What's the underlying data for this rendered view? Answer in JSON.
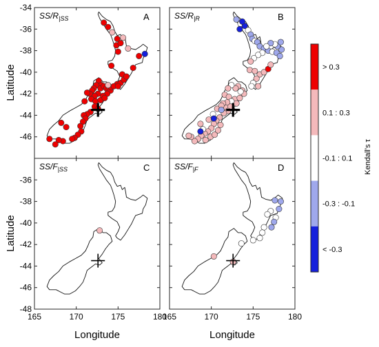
{
  "colors": {
    "strong_pos": "#ee0000",
    "weak_pos": "#f4b9bb",
    "neutral": "#ffffff",
    "weak_neg": "#9fa8ec",
    "strong_neg": "#1520dc"
  },
  "chart_data": {
    "type": "scatter",
    "xlabel": "Longitude",
    "ylabel": "Latitude",
    "xlim": [
      165,
      180
    ],
    "ylim": [
      -48,
      -34
    ],
    "xticks": [
      165,
      170,
      175,
      180
    ],
    "yticks_top": [
      -34,
      -36,
      -38,
      -40,
      -42,
      -44,
      -46
    ],
    "yticks_bottom": [
      -36,
      -38,
      -40,
      -42,
      -44,
      -46,
      -48
    ],
    "grid": false,
    "colorbar": {
      "title": "Kendall's τ",
      "classes": [
        {
          "label": "> 0.3",
          "color": "#ee0000"
        },
        {
          "label": "0.1 : 0.3",
          "color": "#f4b9bb"
        },
        {
          "label": "-0.1 : 0.1",
          "color": "#ffffff"
        },
        {
          "label": "-0.3 : -0.1",
          "color": "#9fa8ec"
        },
        {
          "label": "< -0.3",
          "color": "#1520dc"
        }
      ]
    },
    "marker": {
      "lon": 172.6,
      "lat": -43.5
    },
    "panels": [
      {
        "letter": "A",
        "title_main": "SS/R",
        "title_sub": "|SS",
        "marker_bold": true,
        "points": [
          [
            173.3,
            -35.4,
            4
          ],
          [
            173.8,
            -35.8,
            4
          ],
          [
            174.3,
            -36.3,
            3
          ],
          [
            174.9,
            -36.9,
            4
          ],
          [
            174.8,
            -37.5,
            4
          ],
          [
            175.3,
            -37.3,
            4
          ],
          [
            175.6,
            -36.8,
            3
          ],
          [
            175.0,
            -38.1,
            4
          ],
          [
            176.2,
            -37.8,
            3
          ],
          [
            177.5,
            -38.5,
            4
          ],
          [
            178.2,
            -38.3,
            0
          ],
          [
            176.8,
            -39.6,
            4
          ],
          [
            174.2,
            -39.4,
            4
          ],
          [
            175.5,
            -40.2,
            4
          ],
          [
            174.9,
            -41.1,
            4
          ],
          [
            175.3,
            -41.0,
            4
          ],
          [
            175.7,
            -40.7,
            4
          ],
          [
            176.0,
            -40.4,
            4
          ],
          [
            172.7,
            -40.8,
            4
          ],
          [
            173.0,
            -41.2,
            4
          ],
          [
            172.4,
            -41.2,
            4
          ],
          [
            172.1,
            -41.5,
            4
          ],
          [
            171.9,
            -41.7,
            4
          ],
          [
            172.9,
            -41.5,
            4
          ],
          [
            173.3,
            -41.3,
            4
          ],
          [
            173.6,
            -41.5,
            4
          ],
          [
            173.9,
            -41.6,
            4
          ],
          [
            174.1,
            -41.7,
            4
          ],
          [
            173.7,
            -42.0,
            4
          ],
          [
            173.2,
            -42.2,
            4
          ],
          [
            172.6,
            -42.0,
            4
          ],
          [
            172.2,
            -42.2,
            4
          ],
          [
            171.6,
            -42.0,
            4
          ],
          [
            171.3,
            -41.9,
            4
          ],
          [
            171.8,
            -42.5,
            4
          ],
          [
            171.0,
            -42.7,
            4
          ],
          [
            172.3,
            -42.7,
            4
          ],
          [
            172.9,
            -42.6,
            4
          ],
          [
            173.4,
            -42.4,
            4
          ],
          [
            174.2,
            -41.4,
            4
          ],
          [
            174.5,
            -41.3,
            4
          ],
          [
            175.0,
            -41.3,
            4
          ],
          [
            173.8,
            -41.2,
            3
          ],
          [
            172.2,
            -43.2,
            4
          ],
          [
            172.6,
            -43.4,
            4
          ],
          [
            171.7,
            -43.7,
            4
          ],
          [
            171.3,
            -43.9,
            4
          ],
          [
            170.9,
            -44.0,
            4
          ],
          [
            171.1,
            -44.3,
            4
          ],
          [
            170.8,
            -44.6,
            4
          ],
          [
            170.5,
            -45.0,
            4
          ],
          [
            170.6,
            -45.5,
            4
          ],
          [
            170.2,
            -45.8,
            4
          ],
          [
            169.8,
            -46.1,
            4
          ],
          [
            169.5,
            -46.2,
            4
          ],
          [
            168.4,
            -46.4,
            4
          ],
          [
            167.9,
            -46.3,
            4
          ],
          [
            168.2,
            -44.7,
            4
          ],
          [
            168.8,
            -45.1,
            4
          ],
          [
            166.8,
            -46.2,
            4
          ],
          [
            167.5,
            -46.7,
            4
          ]
        ]
      },
      {
        "letter": "B",
        "title_main": "SS/R",
        "title_sub": "|R",
        "marker_bold": true,
        "points": [
          [
            173.0,
            -35.1,
            1
          ],
          [
            173.5,
            -35.5,
            2
          ],
          [
            174.0,
            -35.7,
            0
          ],
          [
            174.4,
            -36.1,
            2
          ],
          [
            174.7,
            -36.5,
            1
          ],
          [
            174.9,
            -36.9,
            1
          ],
          [
            175.2,
            -37.1,
            2
          ],
          [
            175.5,
            -37.2,
            1
          ],
          [
            175.8,
            -37.6,
            1
          ],
          [
            176.3,
            -37.8,
            1
          ],
          [
            176.8,
            -38.0,
            1
          ],
          [
            177.3,
            -38.1,
            2
          ],
          [
            177.8,
            -38.2,
            1
          ],
          [
            178.2,
            -38.5,
            1
          ],
          [
            178.4,
            -37.9,
            1
          ],
          [
            177.9,
            -37.6,
            1
          ],
          [
            178.3,
            -37.2,
            1
          ],
          [
            177.6,
            -37.4,
            2
          ],
          [
            177.1,
            -37.3,
            1
          ],
          [
            176.6,
            -37.6,
            2
          ],
          [
            176.1,
            -38.2,
            2
          ],
          [
            175.6,
            -38.4,
            2
          ],
          [
            175.1,
            -38.7,
            2
          ],
          [
            174.7,
            -39.0,
            3
          ],
          [
            174.6,
            -39.8,
            3
          ],
          [
            175.2,
            -39.9,
            3
          ],
          [
            175.8,
            -40.2,
            3
          ],
          [
            176.3,
            -40.0,
            3
          ],
          [
            176.8,
            -39.7,
            4
          ],
          [
            177.1,
            -39.3,
            3
          ],
          [
            175.4,
            -40.6,
            3
          ],
          [
            175.0,
            -41.0,
            2
          ],
          [
            175.6,
            -41.3,
            3
          ],
          [
            174.8,
            -41.3,
            2
          ],
          [
            173.2,
            -41.3,
            3
          ],
          [
            173.7,
            -41.7,
            3
          ],
          [
            173.9,
            -42.0,
            3
          ],
          [
            173.5,
            -41.8,
            2
          ],
          [
            172.9,
            -41.5,
            3
          ],
          [
            172.4,
            -41.2,
            2
          ],
          [
            172.0,
            -41.5,
            3
          ],
          [
            171.6,
            -42.1,
            3
          ],
          [
            172.1,
            -42.3,
            3
          ],
          [
            172.8,
            -42.5,
            3
          ],
          [
            173.4,
            -42.4,
            3
          ],
          [
            173.0,
            -42.9,
            3
          ],
          [
            172.4,
            -42.7,
            2
          ],
          [
            171.9,
            -42.8,
            3
          ],
          [
            171.4,
            -42.9,
            3
          ],
          [
            171.8,
            -43.3,
            3
          ],
          [
            172.3,
            -43.2,
            3
          ],
          [
            172.0,
            -43.6,
            3
          ],
          [
            171.5,
            -43.8,
            3
          ],
          [
            171.0,
            -44.2,
            3
          ],
          [
            170.6,
            -44.5,
            3
          ],
          [
            170.3,
            -44.8,
            3
          ],
          [
            170.0,
            -45.2,
            3
          ],
          [
            169.6,
            -45.5,
            3
          ],
          [
            169.2,
            -45.7,
            3
          ],
          [
            168.8,
            -45.9,
            3
          ],
          [
            168.4,
            -46.2,
            3
          ],
          [
            168.0,
            -46.4,
            3
          ],
          [
            167.6,
            -46.0,
            3
          ],
          [
            167.3,
            -45.9,
            3
          ],
          [
            169.3,
            -46.3,
            3
          ],
          [
            169.9,
            -46.0,
            3
          ],
          [
            170.4,
            -45.8,
            3
          ],
          [
            170.8,
            -45.4,
            3
          ],
          [
            171.1,
            -44.9,
            3
          ],
          [
            169.0,
            -45.3,
            2
          ],
          [
            168.7,
            -44.8,
            3
          ],
          [
            169.7,
            -44.4,
            3
          ],
          [
            170.2,
            -43.9,
            2
          ],
          [
            170.7,
            -43.4,
            3
          ],
          [
            171.2,
            -43.1,
            3
          ],
          [
            170.3,
            -44.3,
            0
          ],
          [
            168.7,
            -45.5,
            0
          ],
          [
            171.2,
            -43.5,
            1
          ],
          [
            173.7,
            -35.3,
            0
          ],
          [
            173.4,
            -36.0,
            0
          ]
        ]
      },
      {
        "letter": "C",
        "title_main": "SS/F",
        "title_sub": "|SS",
        "marker_bold": false,
        "points": [
          [
            172.8,
            -40.7,
            3
          ]
        ]
      },
      {
        "letter": "D",
        "title_main": "SS/F",
        "title_sub": "|F",
        "marker_bold": false,
        "points": [
          [
            177.6,
            -37.9,
            1
          ],
          [
            178.3,
            -38.0,
            1
          ],
          [
            178.1,
            -38.7,
            1
          ],
          [
            177.1,
            -38.9,
            2
          ],
          [
            176.7,
            -39.2,
            2
          ],
          [
            177.7,
            -39.5,
            2
          ],
          [
            177.5,
            -39.9,
            1
          ],
          [
            177.2,
            -40.4,
            1
          ],
          [
            176.3,
            -40.4,
            2
          ],
          [
            176.1,
            -40.9,
            2
          ],
          [
            175.8,
            -41.4,
            2
          ],
          [
            175.0,
            -41.6,
            2
          ],
          [
            173.6,
            -41.9,
            2
          ],
          [
            170.3,
            -43.1,
            3
          ],
          [
            172.6,
            -43.6,
            3
          ]
        ]
      }
    ]
  }
}
